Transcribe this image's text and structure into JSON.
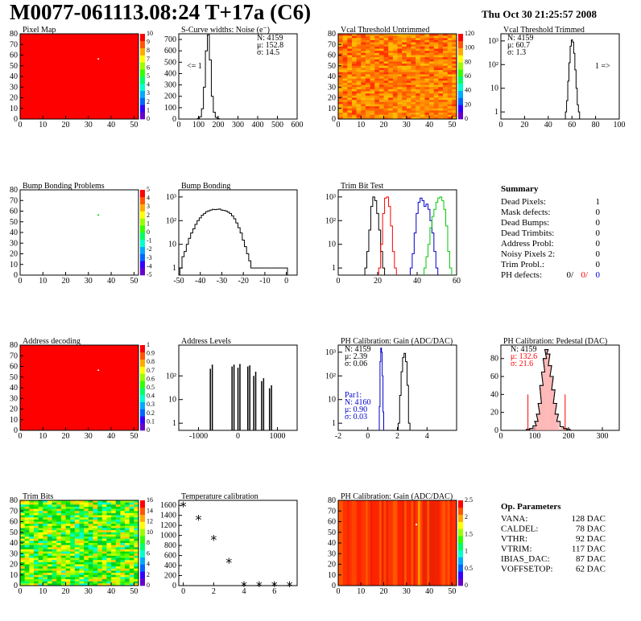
{
  "title": "M0077-061113.08:24 T+17a (C6)",
  "date": "Thu Oct 30 21:25:57 2008",
  "colors": {
    "red": "#ff0000",
    "blue": "#0000cc",
    "green": "#00cc00",
    "black": "#000000"
  },
  "chart_data": [
    {
      "id": "pixel_map",
      "type": "heatmap",
      "title": "Pixel Map",
      "xlim": [
        0,
        52
      ],
      "ylim": [
        0,
        80
      ],
      "xticks": [
        0,
        10,
        20,
        30,
        40,
        50
      ],
      "yticks": [
        0,
        10,
        20,
        30,
        40,
        50,
        60,
        70,
        80
      ],
      "zticks": [
        0,
        1,
        2,
        3,
        4,
        5,
        6,
        7,
        8,
        9,
        10
      ],
      "fill": "uniform-red",
      "spot": {
        "x": 34,
        "y": 57
      }
    },
    {
      "id": "scurve",
      "type": "bar",
      "title": "S-Curve widths: Noise (e⁻)",
      "xlim": [
        0,
        600
      ],
      "log": false,
      "ylim": [
        0,
        750
      ],
      "xticks": [
        0,
        100,
        200,
        300,
        400,
        500,
        600
      ],
      "yticks": [
        0,
        100,
        200,
        300,
        400,
        500,
        600,
        700
      ],
      "bins_x": [
        100,
        110,
        120,
        130,
        140,
        150,
        160,
        170,
        180,
        190,
        200,
        210
      ],
      "bins_y": [
        5,
        20,
        90,
        280,
        600,
        740,
        520,
        200,
        60,
        15,
        4,
        0
      ],
      "stats": [
        "N: 4159",
        "μ: 152.8",
        "σ: 14.5"
      ],
      "annotation": "<= 1"
    },
    {
      "id": "vcal_untrimmed",
      "type": "heatmap",
      "title": "Vcal Threshold Untrimmed",
      "xlim": [
        0,
        52
      ],
      "ylim": [
        0,
        80
      ],
      "xticks": [
        0,
        10,
        20,
        30,
        40,
        50
      ],
      "yticks": [
        0,
        10,
        20,
        30,
        40,
        50,
        60,
        70,
        80
      ],
      "zticks": [
        0,
        20,
        40,
        60,
        80,
        100,
        120
      ],
      "fill": "noisy-orange"
    },
    {
      "id": "vcal_trimmed",
      "type": "line",
      "title": "Vcal Threshold Trimmed",
      "xlim": [
        0,
        100
      ],
      "log": true,
      "ylim": [
        0.5,
        2000
      ],
      "xticks": [
        0,
        20,
        40,
        60,
        80,
        100
      ],
      "yticks": [
        "1",
        "10",
        "10²",
        "10³"
      ],
      "bins_x": [
        55,
        56,
        57,
        58,
        59,
        60,
        61,
        62,
        63,
        64,
        65,
        66,
        67
      ],
      "bins_y": [
        1,
        3,
        20,
        120,
        600,
        1100,
        900,
        300,
        60,
        10,
        2,
        1,
        0
      ],
      "stats": [
        "N: 4159",
        "μ: 60.7",
        "σ:  1.3"
      ],
      "annotation": "1 =>"
    },
    {
      "id": "bump_problems",
      "type": "heatmap",
      "title": "Bump Bonding Problems",
      "xlim": [
        0,
        52
      ],
      "ylim": [
        0,
        80
      ],
      "xticks": [
        0,
        10,
        20,
        30,
        40,
        50
      ],
      "yticks": [
        0,
        10,
        20,
        30,
        40,
        50,
        60,
        70,
        80
      ],
      "zticks": [
        -5,
        -4,
        -3,
        -2,
        -1,
        0,
        1,
        2,
        3,
        4,
        5
      ],
      "fill": "empty",
      "spot": {
        "x": 34,
        "y": 57
      }
    },
    {
      "id": "bump_bonding",
      "type": "line",
      "title": "Bump Bonding",
      "xlim": [
        -50,
        5
      ],
      "log": true,
      "ylim": [
        0.5,
        2000
      ],
      "xticks": [
        -50,
        -40,
        -30,
        -20,
        -10,
        0
      ],
      "yticks": [
        "1",
        "10",
        "10²",
        "10³"
      ],
      "bins_x": [
        -49,
        -48,
        -47,
        -46,
        -45,
        -44,
        -43,
        -42,
        -41,
        -40,
        -39,
        -38,
        -37,
        -36,
        -35,
        -34,
        -33,
        -32,
        -31,
        -30,
        -29,
        -28,
        -27,
        -26,
        -25,
        -24,
        -23,
        -22,
        -21,
        -20,
        -19,
        -18,
        -17,
        -16,
        -15,
        -14,
        0
      ],
      "bins_y": [
        1,
        3,
        5,
        10,
        18,
        30,
        45,
        70,
        100,
        130,
        170,
        200,
        240,
        260,
        280,
        300,
        290,
        300,
        310,
        280,
        270,
        260,
        230,
        200,
        160,
        120,
        80,
        50,
        30,
        15,
        8,
        4,
        2,
        1,
        1,
        1,
        1
      ]
    },
    {
      "id": "trim_bit_test",
      "type": "line",
      "title": "Trim Bit Test",
      "xlim": [
        0,
        60
      ],
      "log": true,
      "ylim": [
        0.5,
        2000
      ],
      "xticks": [
        0,
        20,
        40,
        60
      ],
      "yticks": [
        "1",
        "10",
        "10²",
        "10³"
      ],
      "series": [
        {
          "color": "#000000",
          "x": [
            14,
            15,
            16,
            17,
            18,
            19,
            20,
            21,
            22,
            23
          ],
          "y": [
            1,
            5,
            40,
            400,
            1000,
            700,
            200,
            40,
            5,
            1
          ]
        },
        {
          "color": "#ff0000",
          "x": [
            21,
            22,
            23,
            24,
            25,
            26,
            27,
            28,
            29
          ],
          "y": [
            1,
            10,
            200,
            900,
            1000,
            400,
            60,
            5,
            1
          ]
        },
        {
          "color": "#0000cc",
          "x": [
            37,
            38,
            39,
            40,
            41,
            42,
            43,
            44,
            45,
            46,
            47,
            48,
            49,
            50
          ],
          "y": [
            1,
            4,
            30,
            200,
            600,
            900,
            700,
            400,
            500,
            300,
            100,
            30,
            5,
            1
          ]
        },
        {
          "color": "#00cc00",
          "x": [
            44,
            45,
            46,
            47,
            48,
            49,
            50,
            51,
            52,
            53,
            54,
            55,
            56,
            57
          ],
          "y": [
            1,
            3,
            10,
            50,
            150,
            300,
            600,
            900,
            1000,
            700,
            300,
            60,
            5,
            1
          ]
        }
      ]
    },
    {
      "id": "address_decoding",
      "type": "heatmap",
      "title": "Address decoding",
      "xlim": [
        0,
        52
      ],
      "ylim": [
        0,
        80
      ],
      "xticks": [
        0,
        10,
        20,
        30,
        40,
        50
      ],
      "yticks": [
        0,
        10,
        20,
        30,
        40,
        50,
        60,
        70,
        80
      ],
      "zticks": [
        0,
        0.1,
        0.2,
        0.3,
        0.4,
        0.5,
        0.6,
        0.7,
        0.8,
        0.9,
        1
      ],
      "fill": "uniform-red",
      "spot": {
        "x": 34,
        "y": 57
      }
    },
    {
      "id": "address_levels",
      "type": "bar",
      "title": "Address Levels",
      "xlim": [
        -1500,
        1500
      ],
      "log": true,
      "ylim": [
        0.5,
        2000
      ],
      "xticks": [
        -1000,
        0,
        1000
      ],
      "yticks": [
        "1",
        "10",
        "10²"
      ],
      "bins_x": [
        -700,
        -650,
        -150,
        -100,
        0,
        50,
        250,
        300,
        400,
        450,
        600,
        650,
        800,
        850
      ],
      "bins_y": [
        200,
        300,
        250,
        300,
        220,
        320,
        250,
        280,
        100,
        150,
        60,
        80,
        30,
        40
      ]
    },
    {
      "id": "ph_gain",
      "type": "line",
      "title": "PH Calibration: Gain (ADC/DAC)",
      "xlim": [
        -2,
        6
      ],
      "log": true,
      "ylim": [
        0.5,
        2000
      ],
      "xticks": [
        -2,
        0,
        2,
        4
      ],
      "yticks": [
        "1",
        "10",
        "10²",
        "10³"
      ],
      "series": [
        {
          "color": "#0000cc",
          "x": [
            0.8,
            0.85,
            0.9,
            0.95,
            1.0,
            1.05
          ],
          "y": [
            5,
            400,
            1500,
            1000,
            100,
            3
          ]
        },
        {
          "color": "#000000",
          "x": [
            2.1,
            2.2,
            2.3,
            2.4,
            2.5,
            2.6,
            2.7,
            2.8
          ],
          "y": [
            1,
            15,
            150,
            600,
            900,
            400,
            40,
            1
          ]
        }
      ],
      "stats": [
        "N: 4159",
        "μ: 2.39",
        "σ: 0.06"
      ],
      "stats2": [
        "Par1:",
        "N: 4160",
        "μ: 0.90",
        "σ: 0.03"
      ]
    },
    {
      "id": "ph_pedestal",
      "type": "line",
      "title": "PH Calibration: Pedestal (DAC)",
      "xlim": [
        0,
        350
      ],
      "log": false,
      "ylim": [
        0,
        95
      ],
      "xticks": [
        0,
        100,
        200,
        300
      ],
      "yticks": [
        0,
        20,
        40,
        60,
        80
      ],
      "bins_x": [
        80,
        90,
        100,
        105,
        110,
        115,
        120,
        125,
        130,
        135,
        140,
        145,
        150,
        155,
        160,
        165,
        170,
        180,
        190,
        200
      ],
      "bins_y": [
        1,
        2,
        5,
        10,
        18,
        30,
        50,
        65,
        80,
        90,
        85,
        72,
        60,
        45,
        30,
        18,
        10,
        4,
        2,
        1
      ],
      "stats": [
        "N: 4159",
        "μ: 132.6",
        "σ: 21.6"
      ]
    },
    {
      "id": "trim_bits",
      "type": "heatmap",
      "title": "Trim Bits",
      "xlim": [
        0,
        52
      ],
      "ylim": [
        0,
        80
      ],
      "xticks": [
        0,
        10,
        20,
        30,
        40,
        50
      ],
      "yticks": [
        0,
        10,
        20,
        30,
        40,
        50,
        60,
        70,
        80
      ],
      "zticks": [
        0,
        2,
        4,
        6,
        8,
        10,
        12,
        14,
        16
      ],
      "fill": "noisy-green"
    },
    {
      "id": "temperature",
      "type": "scatter",
      "title": "Temperature calibration",
      "xlim": [
        -0.3,
        7.5
      ],
      "ylim": [
        0,
        1700
      ],
      "xticks": [
        0,
        2,
        4,
        6
      ],
      "yticks": [
        0,
        200,
        400,
        600,
        800,
        1000,
        1200,
        1400,
        1600
      ],
      "x": [
        0,
        1,
        2,
        3,
        4,
        5,
        6,
        7
      ],
      "y": [
        1600,
        1340,
        940,
        480,
        20,
        20,
        20,
        15
      ]
    },
    {
      "id": "ph_gain_map",
      "type": "heatmap",
      "title": "PH Calibration: Gain (ADC/DAC)",
      "xlim": [
        0,
        52
      ],
      "ylim": [
        0,
        80
      ],
      "xticks": [
        0,
        10,
        20,
        30,
        40,
        50
      ],
      "yticks": [
        0,
        10,
        20,
        30,
        40,
        50,
        60,
        70,
        80
      ],
      "zticks": [
        0,
        0.5,
        1,
        1.5,
        2,
        2.5
      ],
      "fill": "striped-red"
    }
  ],
  "summary": {
    "title": "Summary",
    "rows": [
      {
        "label": "Dead Pixels:",
        "value": "1"
      },
      {
        "label": "Mask defects:",
        "value": "0"
      },
      {
        "label": "Dead Bumps:",
        "value": "0"
      },
      {
        "label": "Dead Trimbits:",
        "value": "0"
      },
      {
        "label": "Address Probl:",
        "value": "0"
      },
      {
        "label": "Noisy Pixels 2:",
        "value": "0"
      },
      {
        "label": "Trim Probl.:",
        "value": "0"
      }
    ],
    "ph_label": "PH defects:",
    "ph_values": [
      "0/",
      "0/",
      "0"
    ]
  },
  "op_params": {
    "title": "Op. Parameters",
    "rows": [
      {
        "label": "VANA:",
        "value": "128 DAC"
      },
      {
        "label": "CALDEL:",
        "value": "78 DAC"
      },
      {
        "label": "VTHR:",
        "value": "92 DAC"
      },
      {
        "label": "VTRIM:",
        "value": "117 DAC"
      },
      {
        "label": "IBIAS_DAC:",
        "value": "87 DAC"
      },
      {
        "label": "VOFFSETOP:",
        "value": "62 DAC"
      }
    ]
  }
}
